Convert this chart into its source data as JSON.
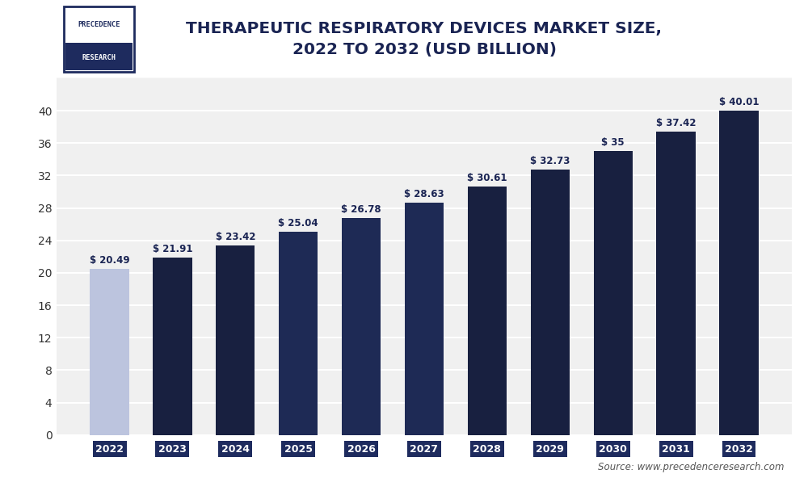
{
  "categories": [
    "2022",
    "2023",
    "2024",
    "2025",
    "2026",
    "2027",
    "2028",
    "2029",
    "2030",
    "2031",
    "2032"
  ],
  "values": [
    20.49,
    21.91,
    23.42,
    25.04,
    26.78,
    28.63,
    30.61,
    32.73,
    35.0,
    37.42,
    40.01
  ],
  "bar_colors": [
    "#bcc4de",
    "#182040",
    "#182040",
    "#1e2a55",
    "#1e2a55",
    "#1e2a55",
    "#182040",
    "#182040",
    "#182040",
    "#182040",
    "#182040"
  ],
  "label_color": "#1a2453",
  "xtick_bg_color": "#1e2b5e",
  "xtick_text_color": "#ffffff",
  "title_line1": "THERAPEUTIC RESPIRATORY DEVICES MARKET SIZE,",
  "title_line2": "2022 TO 2032 (USD BILLION)",
  "title_color": "#1a2453",
  "title_fontsize": 14.5,
  "ylabel_ticks": [
    0,
    4,
    8,
    12,
    16,
    20,
    24,
    28,
    32,
    36,
    40
  ],
  "ylim": [
    0,
    44
  ],
  "bg_color": "#ffffff",
  "plot_bg_color": "#f0f0f0",
  "grid_color": "#ffffff",
  "source_text": "Source: www.precedenceresearch.com",
  "logo_text_line1": "PRECEDENCE",
  "logo_text_line2": "RESEARCH",
  "navy_color": "#1e2b5e",
  "header_bg": "#ffffff",
  "bar_width": 0.62
}
